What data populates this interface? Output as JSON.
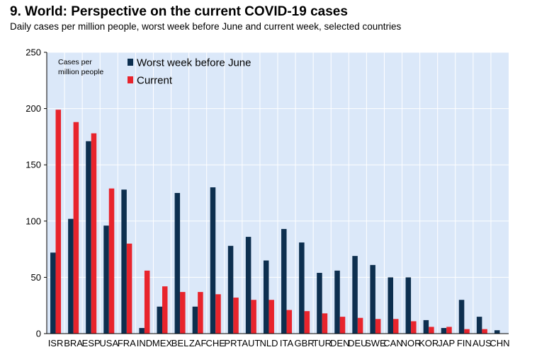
{
  "header": {
    "title": "9. World: Perspective on the current COVID-19 cases",
    "subtitle": "Daily cases per million people, worst week before June and current week, selected countries"
  },
  "colors": {
    "plot_background": "#dbe8f9",
    "series_worst": "#0d2f4f",
    "series_current": "#e8242c",
    "grid": "#ffffff"
  },
  "chart_data": {
    "type": "bar",
    "title": "9. World: Perspective on the current COVID-19 cases",
    "ylabel_lines": [
      "Cases per",
      "million people"
    ],
    "ylim": [
      0,
      250
    ],
    "yticks": [
      0,
      50,
      100,
      150,
      200,
      250
    ],
    "grid": true,
    "legend_position": "top-left",
    "categories": [
      "ISR",
      "BRA",
      "ESP",
      "USA",
      "FRA",
      "IND",
      "MEX",
      "BEL",
      "ZAF",
      "CHE",
      "PRT",
      "AUT",
      "NLD",
      "ITA",
      "GBR",
      "TUR",
      "DEN",
      "DEU",
      "SWE",
      "CAN",
      "NOR",
      "KOR",
      "JAP",
      "FIN",
      "AUS",
      "CHN"
    ],
    "series": [
      {
        "name": "Worst week before June",
        "values": [
          72,
          102,
          171,
          96,
          128,
          5,
          24,
          125,
          24,
          130,
          78,
          86,
          65,
          93,
          81,
          54,
          56,
          69,
          61,
          50,
          50,
          12,
          5,
          30,
          15,
          3
        ]
      },
      {
        "name": "Current",
        "values": [
          199,
          188,
          178,
          129,
          80,
          56,
          42,
          37,
          37,
          35,
          32,
          30,
          30,
          21,
          20,
          18,
          15,
          14,
          13,
          13,
          11,
          6,
          6,
          4,
          4,
          0
        ]
      }
    ]
  }
}
